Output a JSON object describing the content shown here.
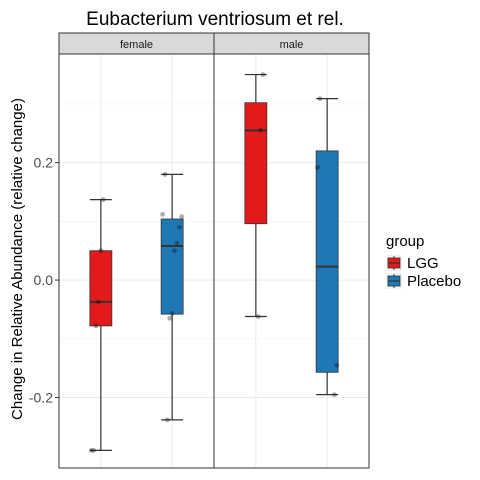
{
  "chart_data": {
    "type": "boxplot",
    "title": "Eubacterium ventriosum et rel.",
    "xlabel": "",
    "ylabel": "Change in Relative Abundance (relative change)",
    "ylim": [
      -0.32,
      0.385
    ],
    "yticks": [
      -0.2,
      0.0,
      0.2
    ],
    "ytick_labels": [
      "-0.2",
      "0.0",
      "0.2"
    ],
    "grid": true,
    "legend_position": "right",
    "legend": {
      "title": "group",
      "entries": [
        {
          "label": "LGG",
          "color": "#e31a1c"
        },
        {
          "label": "Placebo",
          "color": "#1f78b4"
        }
      ]
    },
    "panels": [
      {
        "label": "female",
        "boxes": [
          {
            "group": "LGG",
            "whisker_low": -0.29,
            "q1": -0.078,
            "median": -0.037,
            "q3": 0.05,
            "whisker_high": 0.137,
            "points": [
              -0.29,
              -0.29,
              -0.078,
              -0.037,
              0.05,
              0.137
            ]
          },
          {
            "group": "Placebo",
            "whisker_low": -0.238,
            "q1": -0.058,
            "median": 0.058,
            "q3": 0.104,
            "whisker_high": 0.18,
            "points": [
              -0.238,
              -0.065,
              -0.057,
              0.05,
              0.063,
              0.09,
              0.108,
              0.112,
              0.18
            ]
          }
        ]
      },
      {
        "label": "male",
        "boxes": [
          {
            "group": "LGG",
            "whisker_low": -0.062,
            "q1": 0.096,
            "median": 0.255,
            "q3": 0.302,
            "whisker_high": 0.35,
            "points": [
              -0.062,
              0.255,
              0.35
            ]
          },
          {
            "group": "Placebo",
            "whisker_low": -0.195,
            "q1": -0.157,
            "median": 0.023,
            "q3": 0.22,
            "whisker_high": 0.309,
            "points": [
              -0.195,
              -0.145,
              0.192,
              0.309
            ]
          }
        ]
      }
    ]
  }
}
